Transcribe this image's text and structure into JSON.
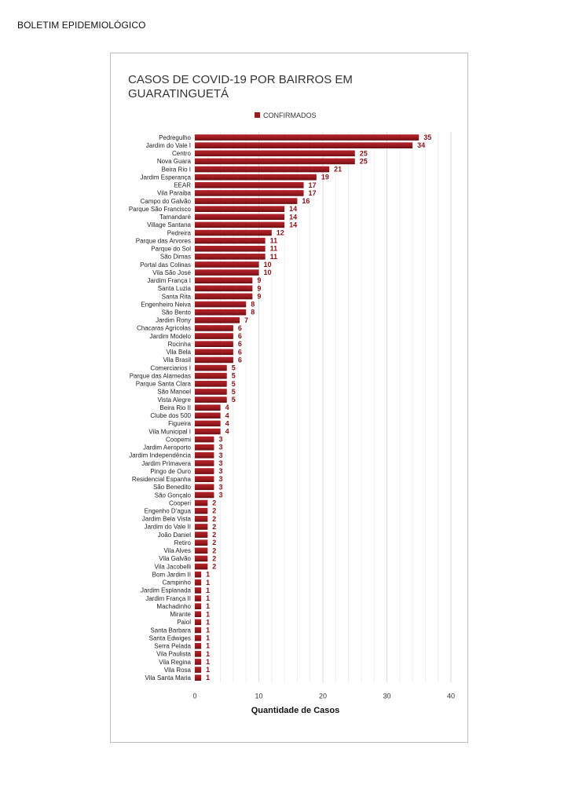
{
  "header": {
    "text": "BOLETIM EPIDEMIOLÓGICO"
  },
  "colors": {
    "bar": "#9b1a1f",
    "bar_dark": "#6a0f13",
    "value": "#8b1418",
    "grid": "#e0e0e0"
  },
  "chart_data": {
    "type": "bar",
    "orientation": "horizontal",
    "title_lines": [
      "CASOS DE COVID-19 POR BAIRROS EM",
      "GUARATINGUETÁ"
    ],
    "xlabel": "Quantidade de Casos",
    "ylabel": "",
    "xlim": [
      0,
      40
    ],
    "xticks": [
      0,
      10,
      20,
      30,
      40
    ],
    "grid": true,
    "legend_position": "top",
    "series": [
      {
        "name": "CONFIRMADOS",
        "color": "#9b1a1f"
      }
    ],
    "categories": [
      "Pedregulho",
      "Jardim do Vale I",
      "Centro",
      "Nova Guara",
      "Beira Rio I",
      "Jardim Esperança",
      "EEAR",
      "Vila Paraiba",
      "Campo do Galvão",
      "Parque São Francisco",
      "Tamandaré",
      "Village Santana",
      "Pedreira",
      "Parque das Arvores",
      "Parque do Sol",
      "São Dimas",
      "Portal das Colinas",
      "Vila São José",
      "Jardim França I",
      "Santa Luzia",
      "Santa Rita",
      "Engenheiro Neiva",
      "São Bento",
      "Jardim Rony",
      "Chacaras Agricolas",
      "Jardim Modelo",
      "Rocinha",
      "Vila Bela",
      "Vila Brasil",
      "Comerciarios I",
      "Parque das Alamedas",
      "Parque Santa Clara",
      "São Manoel",
      "Vista Alegre",
      "Beira Rio II",
      "Clube dos 500",
      "Figueira",
      "Vila Municipal I",
      "Coopemi",
      "Jardim Aeroporto",
      "Jardim Independência",
      "Jardim Primavera",
      "Pingo de Ouro",
      "Residencial Espanha",
      "São Benedito",
      "São Gonçalo",
      "Cooperi",
      "Engenho D'agua",
      "Jardim Bela Vista",
      "Jardim do Vale II",
      "João Daniel",
      "Retiro",
      "Vila Alves",
      "Vila Galvão",
      "Vila Jacobelli",
      "Bom Jardim II",
      "Campinho",
      "Jardim Esplanada",
      "Jardim França II",
      "Machadinho",
      "Mirante",
      "Paiol",
      "Santa Barbara",
      "Santa Edwiges",
      "Serra Pelada",
      "Vila Paulista",
      "Vila Regina",
      "Vila Rosa",
      "Vila Santa Maria"
    ],
    "values": [
      35,
      34,
      25,
      25,
      21,
      19,
      17,
      17,
      16,
      14,
      14,
      14,
      12,
      11,
      11,
      11,
      10,
      10,
      9,
      9,
      9,
      8,
      8,
      7,
      6,
      6,
      6,
      6,
      6,
      5,
      5,
      5,
      5,
      5,
      4,
      4,
      4,
      4,
      3,
      3,
      3,
      3,
      3,
      3,
      3,
      3,
      2,
      2,
      2,
      2,
      2,
      2,
      2,
      2,
      2,
      1,
      1,
      1,
      1,
      1,
      1,
      1,
      1,
      1,
      1,
      1,
      1,
      1,
      1
    ]
  }
}
